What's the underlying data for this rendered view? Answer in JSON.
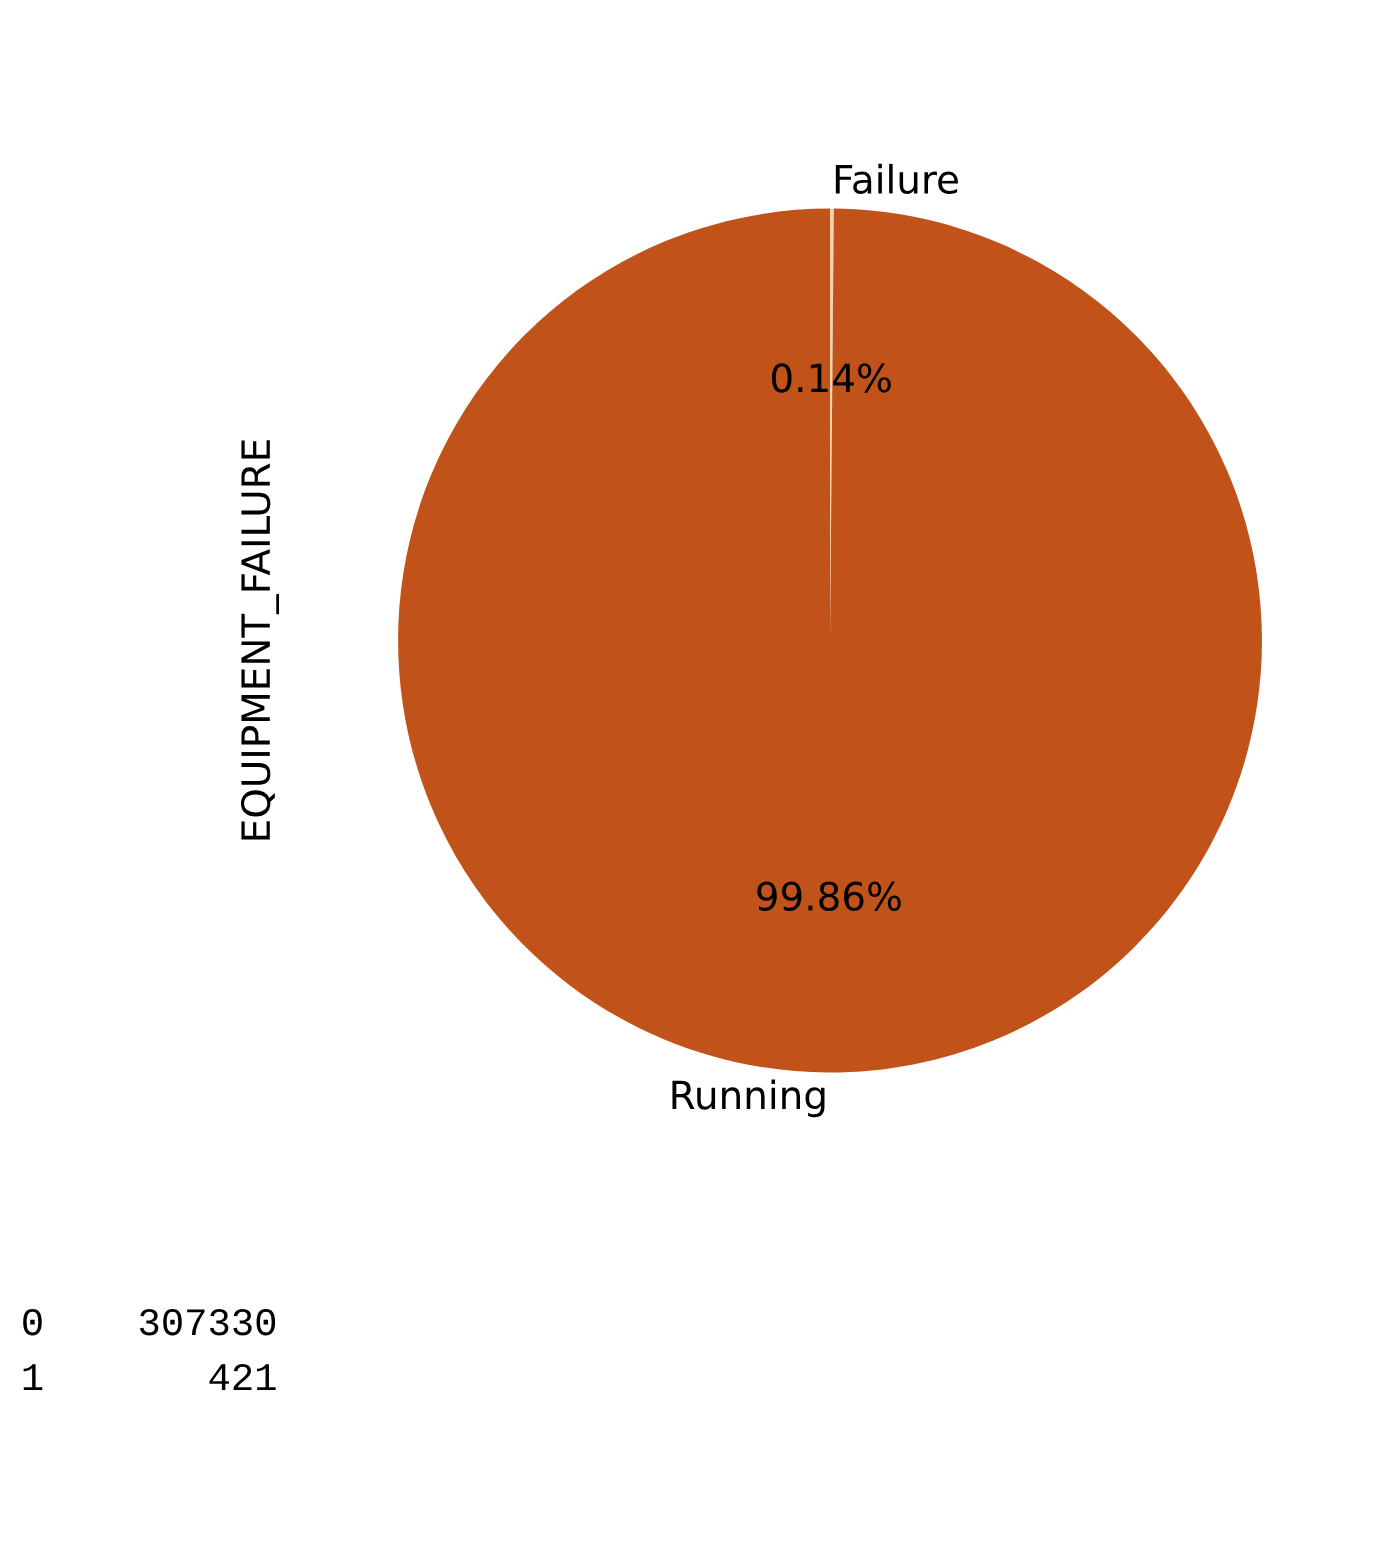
{
  "chart_data": {
    "type": "pie",
    "ylabel": "EQUIPMENT_FAILURE",
    "categories": [
      "Failure",
      "Running"
    ],
    "values": [
      0.14,
      99.86
    ],
    "colors": [
      "#f6d2b4",
      "#c1531a"
    ],
    "value_labels": [
      "0.14%",
      "99.86%"
    ],
    "annotations": [
      "0    307330",
      "1       421"
    ],
    "legend": false
  }
}
